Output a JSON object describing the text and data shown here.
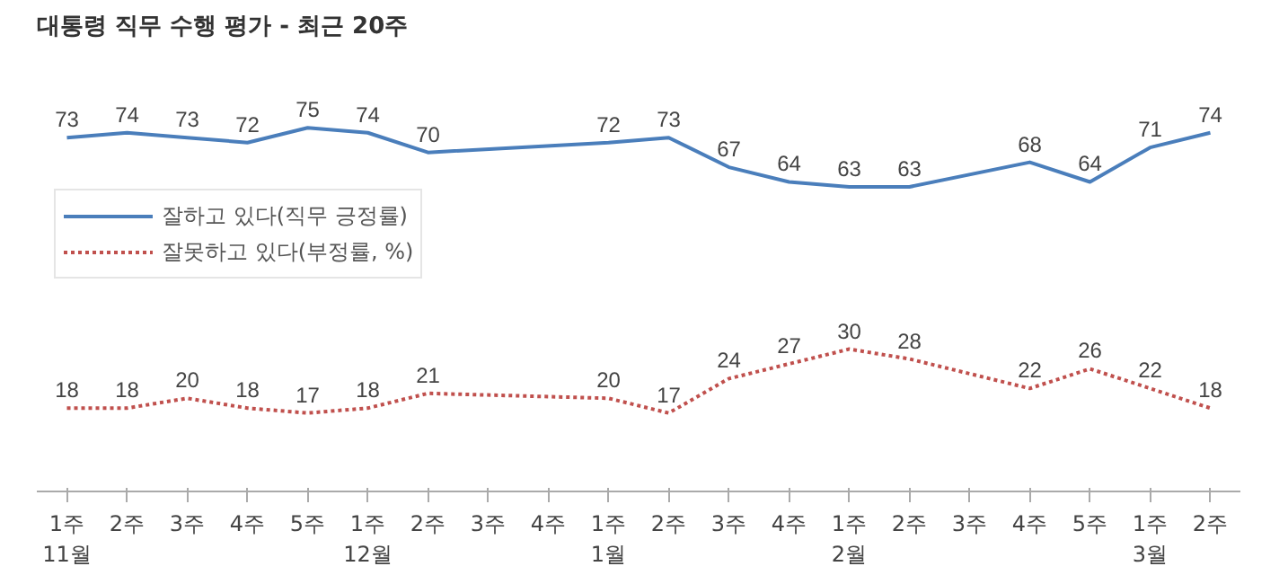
{
  "chart_data": {
    "type": "line",
    "title": "대통령 직무 수행 평가 - 최근 20주",
    "categories": [
      "1주\n11월",
      "2주",
      "3주",
      "4주",
      "5주",
      "1주\n12월",
      "2주",
      "3주",
      "4주",
      "1주\n1월",
      "2주",
      "3주",
      "4주",
      "1주\n2월",
      "2주",
      "3주",
      "4주",
      "5주",
      "1주\n3월",
      "2주"
    ],
    "series": [
      {
        "name": "잘하고 있다(직무 긍정률)",
        "color": "#4a7ebb",
        "line_style": "solid",
        "values": [
          73,
          74,
          73,
          72,
          75,
          74,
          70,
          null,
          null,
          72,
          73,
          67,
          64,
          63,
          63,
          null,
          68,
          64,
          71,
          74
        ]
      },
      {
        "name": "잘못하고 있다(부정률, %)",
        "color": "#c0504d",
        "line_style": "dotted",
        "values": [
          18,
          18,
          20,
          18,
          17,
          18,
          21,
          null,
          null,
          20,
          17,
          24,
          27,
          30,
          28,
          null,
          22,
          26,
          22,
          18
        ]
      }
    ],
    "data_labels": true,
    "legend": "left",
    "grid": false
  }
}
